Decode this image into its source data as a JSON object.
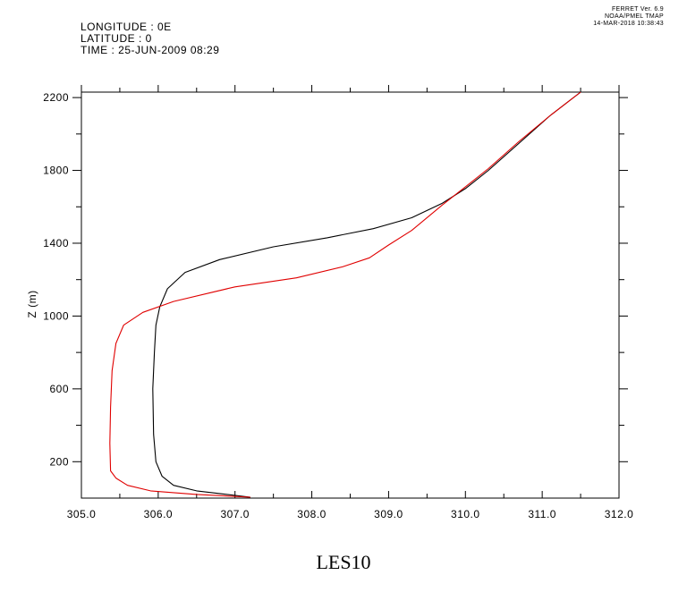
{
  "header": {
    "longitude": "LONGITUDE : 0E",
    "latitude": "LATITUDE : 0",
    "time": "TIME : 25-JUN-2009 08:29"
  },
  "stamp": {
    "line1": "FERRET Ver. 6.9",
    "line2": "NOAA/PMEL TMAP",
    "line3": "14-MAR-2018 10:38:43"
  },
  "chart_data": {
    "type": "line",
    "title": "LES10",
    "xlabel": "",
    "ylabel": "Z (m)",
    "xlim": [
      305.0,
      312.0
    ],
    "ylim": [
      0,
      2230
    ],
    "x_tick_labels": [
      "305.0",
      "306.0",
      "307.0",
      "308.0",
      "309.0",
      "310.0",
      "311.0",
      "312.0"
    ],
    "y_tick_labels": [
      "200",
      "600",
      "1000",
      "1400",
      "1800",
      "2200"
    ],
    "colors": {
      "series_a": "#000000",
      "series_b": "#e00000"
    },
    "series": [
      {
        "color": "#000000",
        "points": [
          [
            307.2,
            5
          ],
          [
            306.9,
            20
          ],
          [
            306.5,
            40
          ],
          [
            306.2,
            70
          ],
          [
            306.05,
            120
          ],
          [
            305.97,
            200
          ],
          [
            305.94,
            350
          ],
          [
            305.93,
            600
          ],
          [
            305.95,
            800
          ],
          [
            305.97,
            950
          ],
          [
            306.02,
            1050
          ],
          [
            306.12,
            1150
          ],
          [
            306.35,
            1240
          ],
          [
            306.8,
            1310
          ],
          [
            307.5,
            1380
          ],
          [
            308.2,
            1430
          ],
          [
            308.8,
            1480
          ],
          [
            309.3,
            1540
          ],
          [
            309.7,
            1620
          ],
          [
            310.0,
            1700
          ],
          [
            310.3,
            1800
          ],
          [
            310.7,
            1950
          ],
          [
            311.1,
            2100
          ],
          [
            311.5,
            2230
          ]
        ]
      },
      {
        "color": "#e00000",
        "points": [
          [
            307.2,
            5
          ],
          [
            306.5,
            20
          ],
          [
            305.9,
            40
          ],
          [
            305.6,
            70
          ],
          [
            305.45,
            110
          ],
          [
            305.38,
            150
          ],
          [
            305.37,
            300
          ],
          [
            305.38,
            500
          ],
          [
            305.4,
            700
          ],
          [
            305.45,
            850
          ],
          [
            305.55,
            950
          ],
          [
            305.8,
            1020
          ],
          [
            306.2,
            1080
          ],
          [
            307.0,
            1160
          ],
          [
            307.8,
            1210
          ],
          [
            308.4,
            1270
          ],
          [
            308.75,
            1320
          ],
          [
            309.0,
            1390
          ],
          [
            309.3,
            1470
          ],
          [
            309.7,
            1610
          ],
          [
            310.0,
            1710
          ],
          [
            310.3,
            1810
          ],
          [
            310.7,
            1960
          ],
          [
            311.1,
            2100
          ],
          [
            311.5,
            2230
          ]
        ]
      }
    ]
  }
}
